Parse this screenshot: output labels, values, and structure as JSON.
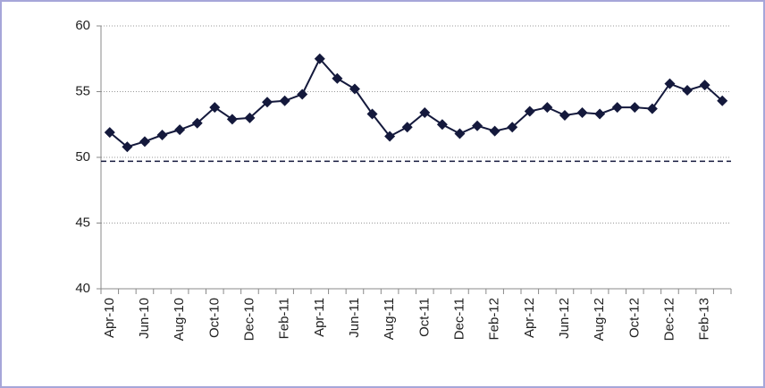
{
  "chart_data": {
    "type": "line",
    "categories": [
      "Apr-10",
      null,
      "Jun-10",
      null,
      "Aug-10",
      null,
      "Oct-10",
      null,
      "Dec-10",
      null,
      "Feb-11",
      null,
      "Apr-11",
      null,
      "Jun-11",
      null,
      "Aug-11",
      null,
      "Oct-11",
      null,
      "Dec-11",
      null,
      "Feb-12",
      null,
      "Apr-12",
      null,
      "Jun-12",
      null,
      "Aug-12",
      null,
      "Oct-12",
      null,
      "Dec-12",
      null,
      "Feb-13",
      null
    ],
    "series": [
      {
        "color": "#14193c",
        "values": [
          51.9,
          50.8,
          51.2,
          51.7,
          52.1,
          52.6,
          53.8,
          52.9,
          53.0,
          54.2,
          54.3,
          54.8,
          57.5,
          56.0,
          55.2,
          53.3,
          51.6,
          52.3,
          53.4,
          52.5,
          51.8,
          52.4,
          52.0,
          52.3,
          53.5,
          53.8,
          53.2,
          53.4,
          53.3,
          53.8,
          53.8,
          53.7,
          55.6,
          55.1,
          55.5,
          54.3
        ]
      }
    ],
    "reference_line": 49.7,
    "ylim": [
      40,
      60
    ],
    "yticks": [
      40,
      45,
      50,
      55,
      60
    ],
    "grid": true
  }
}
